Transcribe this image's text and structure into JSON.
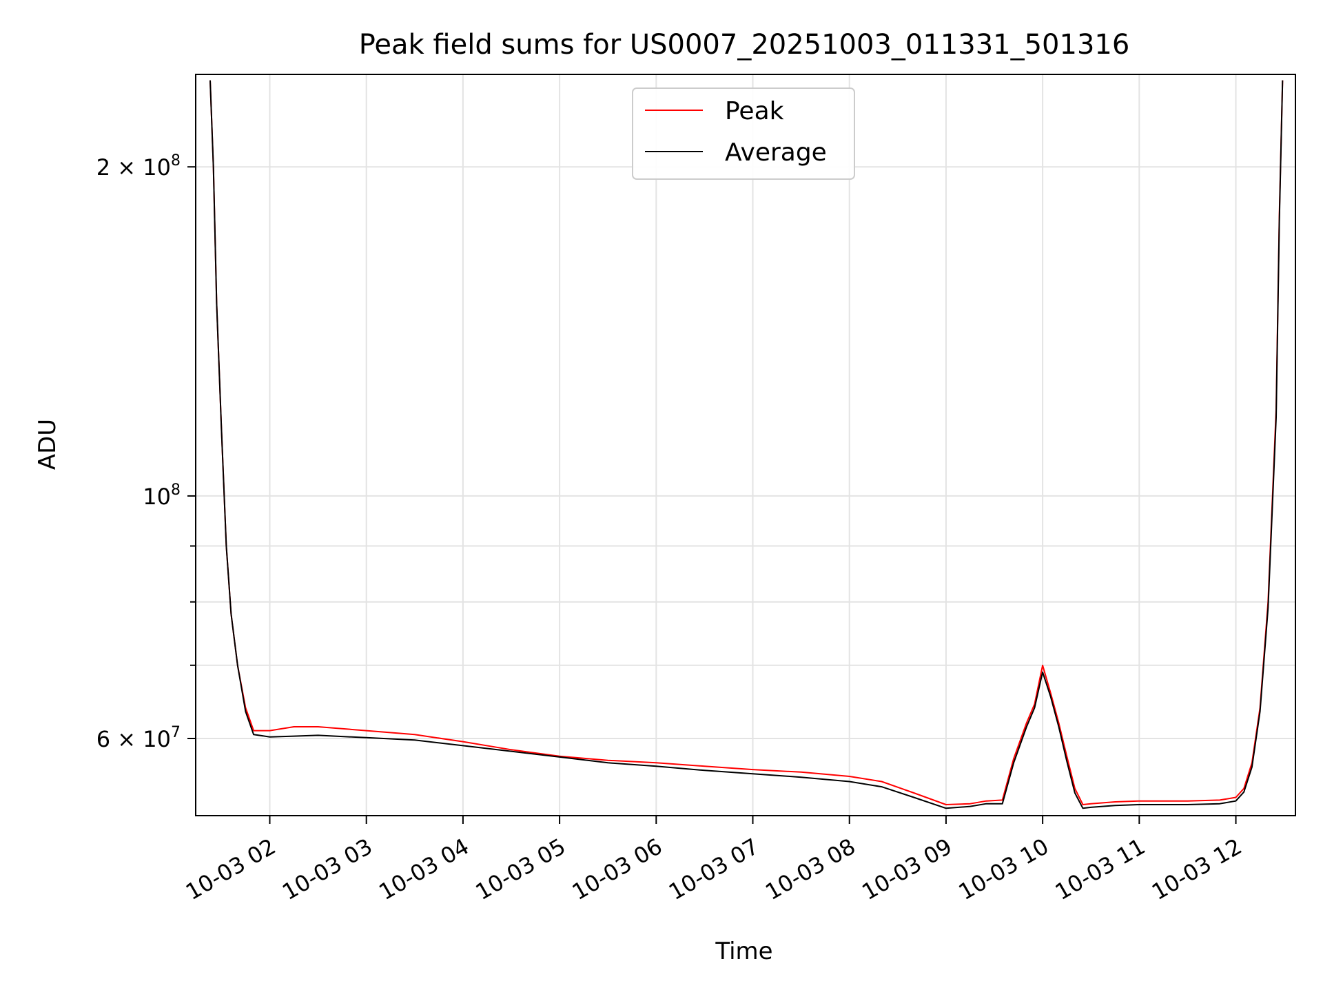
{
  "chart_data": {
    "type": "line",
    "title": "Peak field sums for US0007_20251003_011331_501316",
    "xlabel": "Time",
    "ylabel": "ADU",
    "yscale": "log",
    "xlim": [
      "2025-10-03T01:14",
      "2025-10-03T12:37"
    ],
    "ylim": [
      51000000,
      243000000
    ],
    "grid": true,
    "legend": "upper center",
    "x_ticks": [
      "10-03 02",
      "10-03 03",
      "10-03 04",
      "10-03 05",
      "10-03 06",
      "10-03 07",
      "10-03 08",
      "10-03 09",
      "10-03 10",
      "10-03 11",
      "10-03 12"
    ],
    "x_tick_times": [
      "2025-10-03T02:00",
      "2025-10-03T03:00",
      "2025-10-03T04:00",
      "2025-10-03T05:00",
      "2025-10-03T06:00",
      "2025-10-03T07:00",
      "2025-10-03T08:00",
      "2025-10-03T09:00",
      "2025-10-03T10:00",
      "2025-10-03T11:00",
      "2025-10-03T12:00"
    ],
    "y_ticks": [
      {
        "mantissa": "2",
        "exp": "8",
        "value": 200000000
      },
      {
        "mantissa": "",
        "exp": "8",
        "value": 100000000
      },
      {
        "mantissa": "6",
        "exp": "7",
        "value": 60000000
      }
    ],
    "y_minor_ticks": [
      70000000,
      80000000,
      90000000
    ],
    "series": [
      {
        "name": "Peak",
        "color": "#ff0000",
        "x": [
          "2025-10-03T01:23",
          "2025-10-03T01:25",
          "2025-10-03T01:27",
          "2025-10-03T01:30",
          "2025-10-03T01:33",
          "2025-10-03T01:36",
          "2025-10-03T01:40",
          "2025-10-03T01:45",
          "2025-10-03T01:50",
          "2025-10-03T02:00",
          "2025-10-03T02:15",
          "2025-10-03T02:30",
          "2025-10-03T03:00",
          "2025-10-03T03:30",
          "2025-10-03T04:00",
          "2025-10-03T04:30",
          "2025-10-03T05:00",
          "2025-10-03T05:30",
          "2025-10-03T06:00",
          "2025-10-03T06:30",
          "2025-10-03T07:00",
          "2025-10-03T07:30",
          "2025-10-03T08:00",
          "2025-10-03T08:20",
          "2025-10-03T08:40",
          "2025-10-03T09:00",
          "2025-10-03T09:15",
          "2025-10-03T09:25",
          "2025-10-03T09:35",
          "2025-10-03T09:42",
          "2025-10-03T09:50",
          "2025-10-03T09:55",
          "2025-10-03T10:00",
          "2025-10-03T10:05",
          "2025-10-03T10:10",
          "2025-10-03T10:15",
          "2025-10-03T10:20",
          "2025-10-03T10:25",
          "2025-10-03T10:30",
          "2025-10-03T10:45",
          "2025-10-03T11:00",
          "2025-10-03T11:30",
          "2025-10-03T11:50",
          "2025-10-03T12:00",
          "2025-10-03T12:05",
          "2025-10-03T12:10",
          "2025-10-03T12:15",
          "2025-10-03T12:20",
          "2025-10-03T12:25",
          "2025-10-03T12:27",
          "2025-10-03T12:29"
        ],
        "y": [
          240000000,
          200000000,
          150000000,
          115000000,
          90000000,
          78000000,
          70000000,
          64000000,
          61000000,
          61000000,
          61500000,
          61500000,
          61000000,
          60500000,
          59600000,
          58600000,
          57800000,
          57300000,
          57000000,
          56600000,
          56200000,
          55900000,
          55400000,
          54800000,
          53500000,
          52200000,
          52300000,
          52600000,
          52700000,
          57500000,
          62000000,
          64500000,
          70000000,
          66000000,
          62000000,
          57800000,
          54000000,
          52200000,
          52300000,
          52500000,
          52600000,
          52600000,
          52700000,
          53000000,
          54000000,
          57000000,
          64000000,
          80000000,
          120000000,
          180000000,
          240000000
        ]
      },
      {
        "name": "Average",
        "color": "#000000",
        "x": [
          "2025-10-03T01:23",
          "2025-10-03T01:25",
          "2025-10-03T01:27",
          "2025-10-03T01:30",
          "2025-10-03T01:33",
          "2025-10-03T01:36",
          "2025-10-03T01:40",
          "2025-10-03T01:45",
          "2025-10-03T01:50",
          "2025-10-03T02:00",
          "2025-10-03T02:15",
          "2025-10-03T02:30",
          "2025-10-03T03:00",
          "2025-10-03T03:30",
          "2025-10-03T04:00",
          "2025-10-03T04:30",
          "2025-10-03T05:00",
          "2025-10-03T05:30",
          "2025-10-03T06:00",
          "2025-10-03T06:30",
          "2025-10-03T07:00",
          "2025-10-03T07:30",
          "2025-10-03T08:00",
          "2025-10-03T08:20",
          "2025-10-03T08:40",
          "2025-10-03T09:00",
          "2025-10-03T09:15",
          "2025-10-03T09:25",
          "2025-10-03T09:35",
          "2025-10-03T09:42",
          "2025-10-03T09:50",
          "2025-10-03T09:55",
          "2025-10-03T10:00",
          "2025-10-03T10:05",
          "2025-10-03T10:10",
          "2025-10-03T10:15",
          "2025-10-03T10:20",
          "2025-10-03T10:25",
          "2025-10-03T10:30",
          "2025-10-03T10:45",
          "2025-10-03T11:00",
          "2025-10-03T11:30",
          "2025-10-03T11:50",
          "2025-10-03T12:00",
          "2025-10-03T12:05",
          "2025-10-03T12:10",
          "2025-10-03T12:15",
          "2025-10-03T12:20",
          "2025-10-03T12:25",
          "2025-10-03T12:27",
          "2025-10-03T12:29"
        ],
        "y": [
          240000000,
          200000000,
          150000000,
          115000000,
          90000000,
          78000000,
          70000000,
          63500000,
          60500000,
          60200000,
          60300000,
          60400000,
          60100000,
          59800000,
          59100000,
          58400000,
          57700000,
          57000000,
          56600000,
          56100000,
          55700000,
          55300000,
          54800000,
          54200000,
          53000000,
          51800000,
          52000000,
          52300000,
          52300000,
          57000000,
          61500000,
          64000000,
          69000000,
          65500000,
          61500000,
          57200000,
          53500000,
          51800000,
          51900000,
          52100000,
          52200000,
          52200000,
          52300000,
          52600000,
          53600000,
          56500000,
          63500000,
          79000000,
          118000000,
          178000000,
          240000000
        ]
      }
    ]
  }
}
